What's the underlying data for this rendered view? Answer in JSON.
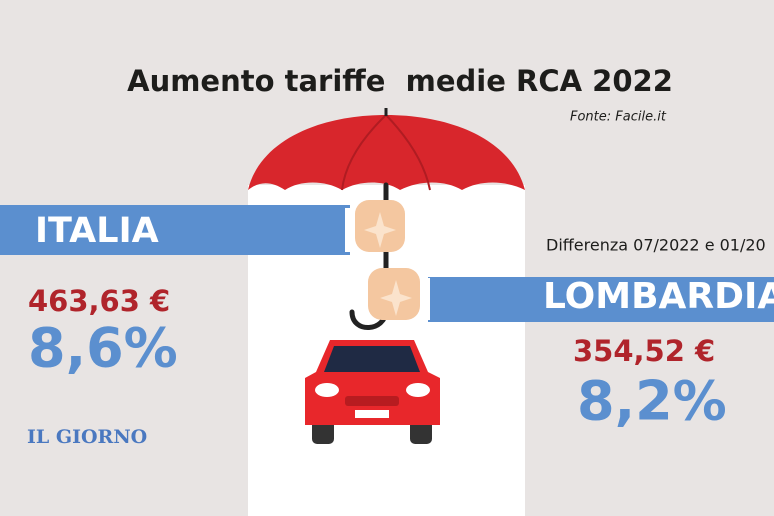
{
  "title": "Aumento tariffe  medie RCA 2022",
  "source": "Fonte: Facile.it",
  "note": "Differenza 07/2022 e 01/20",
  "italia": {
    "label": "ITALIA",
    "amount": "463,63 €",
    "percent": "8,6%"
  },
  "lombardia": {
    "label": "LOMBARDIA",
    "amount": "354,52 €",
    "percent": "8,2%"
  },
  "logo": "IL GIORNO"
}
